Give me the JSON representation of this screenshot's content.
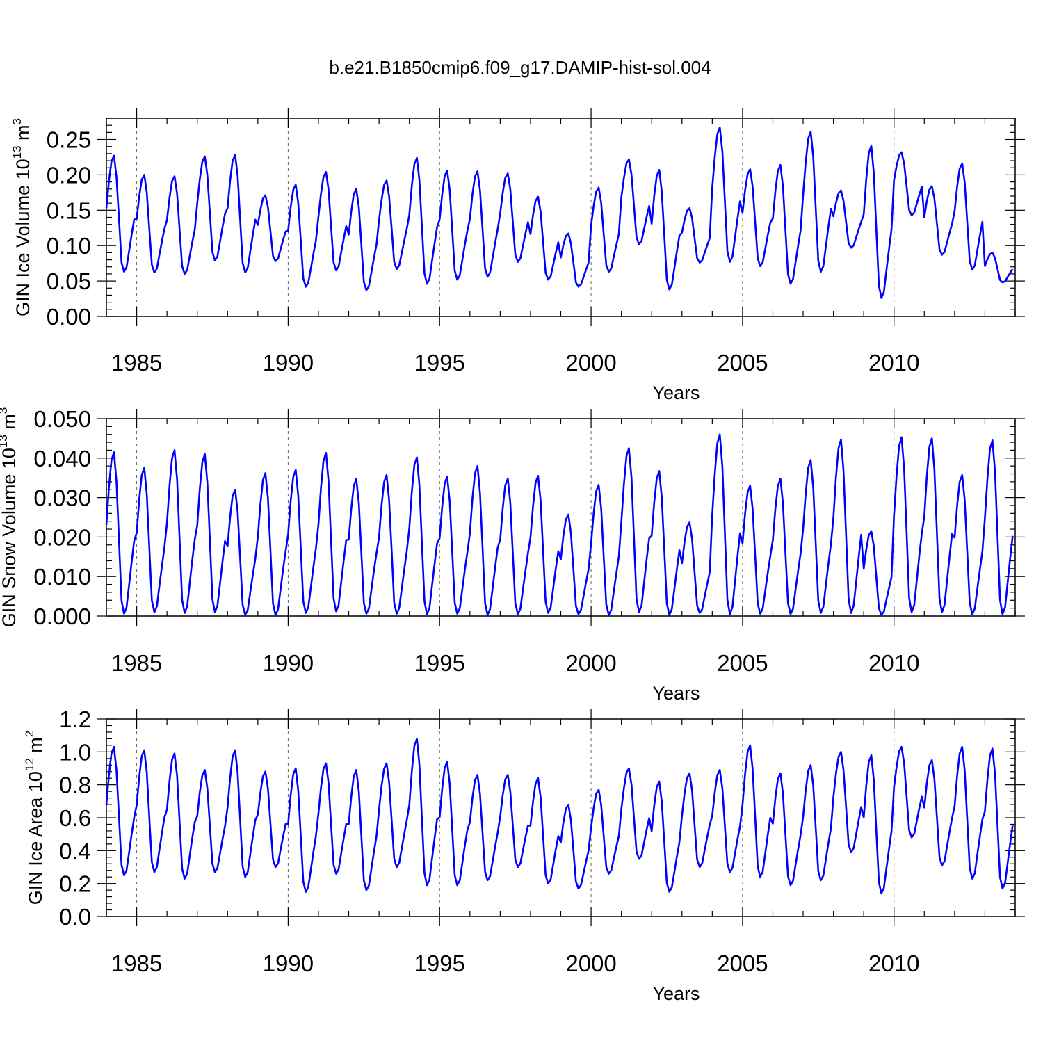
{
  "figure_title": "b.e21.B1850cmip6.f09_g17.DAMIP-hist-sol.004",
  "colors": {
    "series": "#0000ff",
    "axis": "#000000",
    "refline": "#666666",
    "background": "#ffffff"
  },
  "chart_data": [
    {
      "type": "line",
      "title": "b.e21.B1850cmip6.f09_g17.DAMIP-hist-sol.004",
      "xlabel": "Years",
      "ylabel": {
        "main": "GIN Ice Volume 10",
        "sup": "13",
        "unit": " m",
        "unit_sup": "3"
      },
      "xlim": [
        1984.0,
        2014.0
      ],
      "ylim": [
        0.0,
        0.28
      ],
      "xticks": [
        1985,
        1990,
        1995,
        2000,
        2005,
        2010
      ],
      "xtick_labels": [
        "1985",
        "1990",
        "1995",
        "2000",
        "2005",
        "2010"
      ],
      "yticks": [
        0.0,
        0.05,
        0.1,
        0.15,
        0.2,
        0.25
      ],
      "ytick_labels": [
        "0.00",
        "0.05",
        "0.10",
        "0.15",
        "0.20",
        "0.25"
      ],
      "reference_lines_x": [
        1985,
        1990,
        1995,
        2000,
        2005,
        2010
      ],
      "series": [
        {
          "name": "GIN Ice Volume",
          "seasonal_min": [
            0.063,
            0.062,
            0.06,
            0.079,
            0.062,
            0.078,
            0.042,
            0.065,
            0.037,
            0.067,
            0.046,
            0.052,
            0.056,
            0.077,
            0.052,
            0.042,
            0.063,
            0.102,
            0.038,
            0.076,
            0.077,
            0.071,
            0.046,
            0.063,
            0.097,
            0.026,
            0.143,
            0.087,
            0.066,
            0.048
          ],
          "seasonal_max": [
            0.227,
            0.2,
            0.198,
            0.226,
            0.228,
            0.171,
            0.186,
            0.204,
            0.18,
            0.192,
            0.224,
            0.206,
            0.205,
            0.202,
            0.169,
            0.117,
            0.182,
            0.222,
            0.207,
            0.153,
            0.267,
            0.208,
            0.214,
            0.261,
            0.178,
            0.241,
            0.232,
            0.184,
            0.216,
            0.09
          ]
        }
      ]
    },
    {
      "type": "line",
      "xlabel": "Years",
      "ylabel": {
        "main": "GIN Snow Volume 10",
        "sup": "13",
        "unit": " m",
        "unit_sup": "3"
      },
      "xlim": [
        1984.0,
        2014.0
      ],
      "ylim": [
        0.0,
        0.05
      ],
      "xticks": [
        1985,
        1990,
        1995,
        2000,
        2005,
        2010
      ],
      "xtick_labels": [
        "1985",
        "1990",
        "1995",
        "2000",
        "2005",
        "2010"
      ],
      "yticks": [
        0.0,
        0.01,
        0.02,
        0.03,
        0.04,
        0.05
      ],
      "ytick_labels": [
        "0.000",
        "0.010",
        "0.020",
        "0.030",
        "0.040",
        "0.050"
      ],
      "reference_lines_x": [
        1985,
        1990,
        1995,
        2000,
        2005,
        2010
      ],
      "series": [
        {
          "name": "GIN Snow Volume",
          "seasonal_min": [
            0.0006,
            0.001,
            0.0008,
            0.001,
            0.0003,
            0.0003,
            0.0008,
            0.0012,
            0.0006,
            0.0006,
            0.0005,
            0.0006,
            0.0003,
            0.0005,
            0.0008,
            0.0005,
            0.0003,
            0.001,
            0.0003,
            0.0008,
            0.0005,
            0.0006,
            0.0005,
            0.0008,
            0.0008,
            0.0003,
            0.001,
            0.001,
            0.0005,
            0.0005
          ],
          "seasonal_max": [
            0.0415,
            0.0375,
            0.042,
            0.041,
            0.032,
            0.0362,
            0.037,
            0.0413,
            0.0347,
            0.0357,
            0.0402,
            0.0353,
            0.038,
            0.0348,
            0.0355,
            0.0257,
            0.0332,
            0.0425,
            0.0367,
            0.0237,
            0.046,
            0.033,
            0.0347,
            0.0395,
            0.0447,
            0.0215,
            0.0453,
            0.045,
            0.0357,
            0.0445
          ]
        }
      ]
    },
    {
      "type": "line",
      "xlabel": "Years",
      "ylabel": {
        "main": "GIN Ice Area 10",
        "sup": "12",
        "unit": " m",
        "unit_sup": "2"
      },
      "xlim": [
        1984.0,
        2014.0
      ],
      "ylim": [
        0.0,
        1.2
      ],
      "xticks": [
        1985,
        1990,
        1995,
        2000,
        2005,
        2010
      ],
      "xtick_labels": [
        "1985",
        "1990",
        "1995",
        "2000",
        "2005",
        "2010"
      ],
      "yticks": [
        0.0,
        0.2,
        0.4,
        0.6,
        0.8,
        1.0,
        1.2
      ],
      "ytick_labels": [
        "0.0",
        "0.2",
        "0.4",
        "0.6",
        "0.8",
        "1.0",
        "1.2"
      ],
      "reference_lines_x": [
        1985,
        1990,
        1995,
        2000,
        2005,
        2010
      ],
      "series": [
        {
          "name": "GIN Ice Area",
          "seasonal_min": [
            0.25,
            0.27,
            0.23,
            0.27,
            0.24,
            0.3,
            0.15,
            0.26,
            0.16,
            0.3,
            0.19,
            0.19,
            0.22,
            0.3,
            0.2,
            0.17,
            0.26,
            0.35,
            0.15,
            0.3,
            0.27,
            0.24,
            0.19,
            0.22,
            0.39,
            0.14,
            0.48,
            0.31,
            0.23,
            0.17
          ],
          "seasonal_max": [
            1.03,
            1.01,
            0.99,
            0.89,
            1.01,
            0.88,
            0.9,
            0.93,
            0.89,
            0.93,
            1.08,
            0.94,
            0.86,
            0.86,
            0.84,
            0.68,
            0.77,
            0.9,
            0.82,
            0.87,
            0.89,
            1.04,
            0.87,
            0.92,
            1.0,
            0.98,
            1.03,
            0.95,
            1.03,
            1.02
          ]
        }
      ]
    }
  ]
}
